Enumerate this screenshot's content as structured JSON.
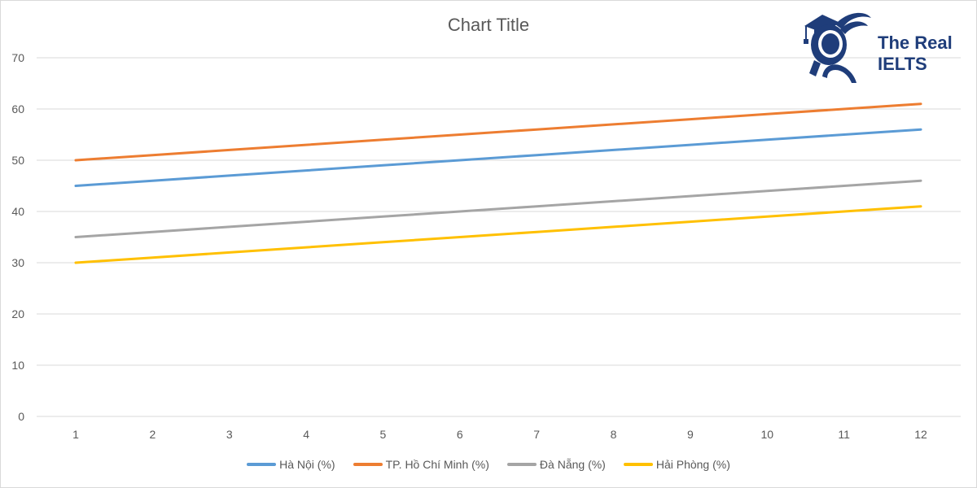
{
  "chart_data": {
    "type": "line",
    "title": "Chart Title",
    "xlabel": "",
    "ylabel": "",
    "x": [
      1,
      2,
      3,
      4,
      5,
      6,
      7,
      8,
      9,
      10,
      11,
      12
    ],
    "yticks": [
      0,
      10,
      20,
      30,
      40,
      50,
      60,
      70
    ],
    "ylim": [
      0,
      70
    ],
    "grid": true,
    "legend_position": "bottom",
    "series": [
      {
        "name": "Hà Nội (%)",
        "color": "#5b9bd5",
        "values": [
          45,
          46,
          47,
          48,
          49,
          50,
          51,
          52,
          53,
          54,
          55,
          56
        ]
      },
      {
        "name": "TP. Hồ Chí Minh (%)",
        "color": "#ed7d31",
        "values": [
          50,
          51,
          52,
          53,
          54,
          55,
          56,
          57,
          58,
          59,
          60,
          61
        ]
      },
      {
        "name": "Đà Nẵng (%)",
        "color": "#a5a5a5",
        "values": [
          35,
          36,
          37,
          38,
          39,
          40,
          41,
          42,
          43,
          44,
          45,
          46
        ]
      },
      {
        "name": "Hải Phòng (%)",
        "color": "#ffc000",
        "values": [
          30,
          31,
          32,
          33,
          34,
          35,
          36,
          37,
          38,
          39,
          40,
          41
        ]
      }
    ]
  },
  "logo": {
    "line1": "The Real",
    "line2": "IELTS",
    "color": "#1f3d7a"
  }
}
